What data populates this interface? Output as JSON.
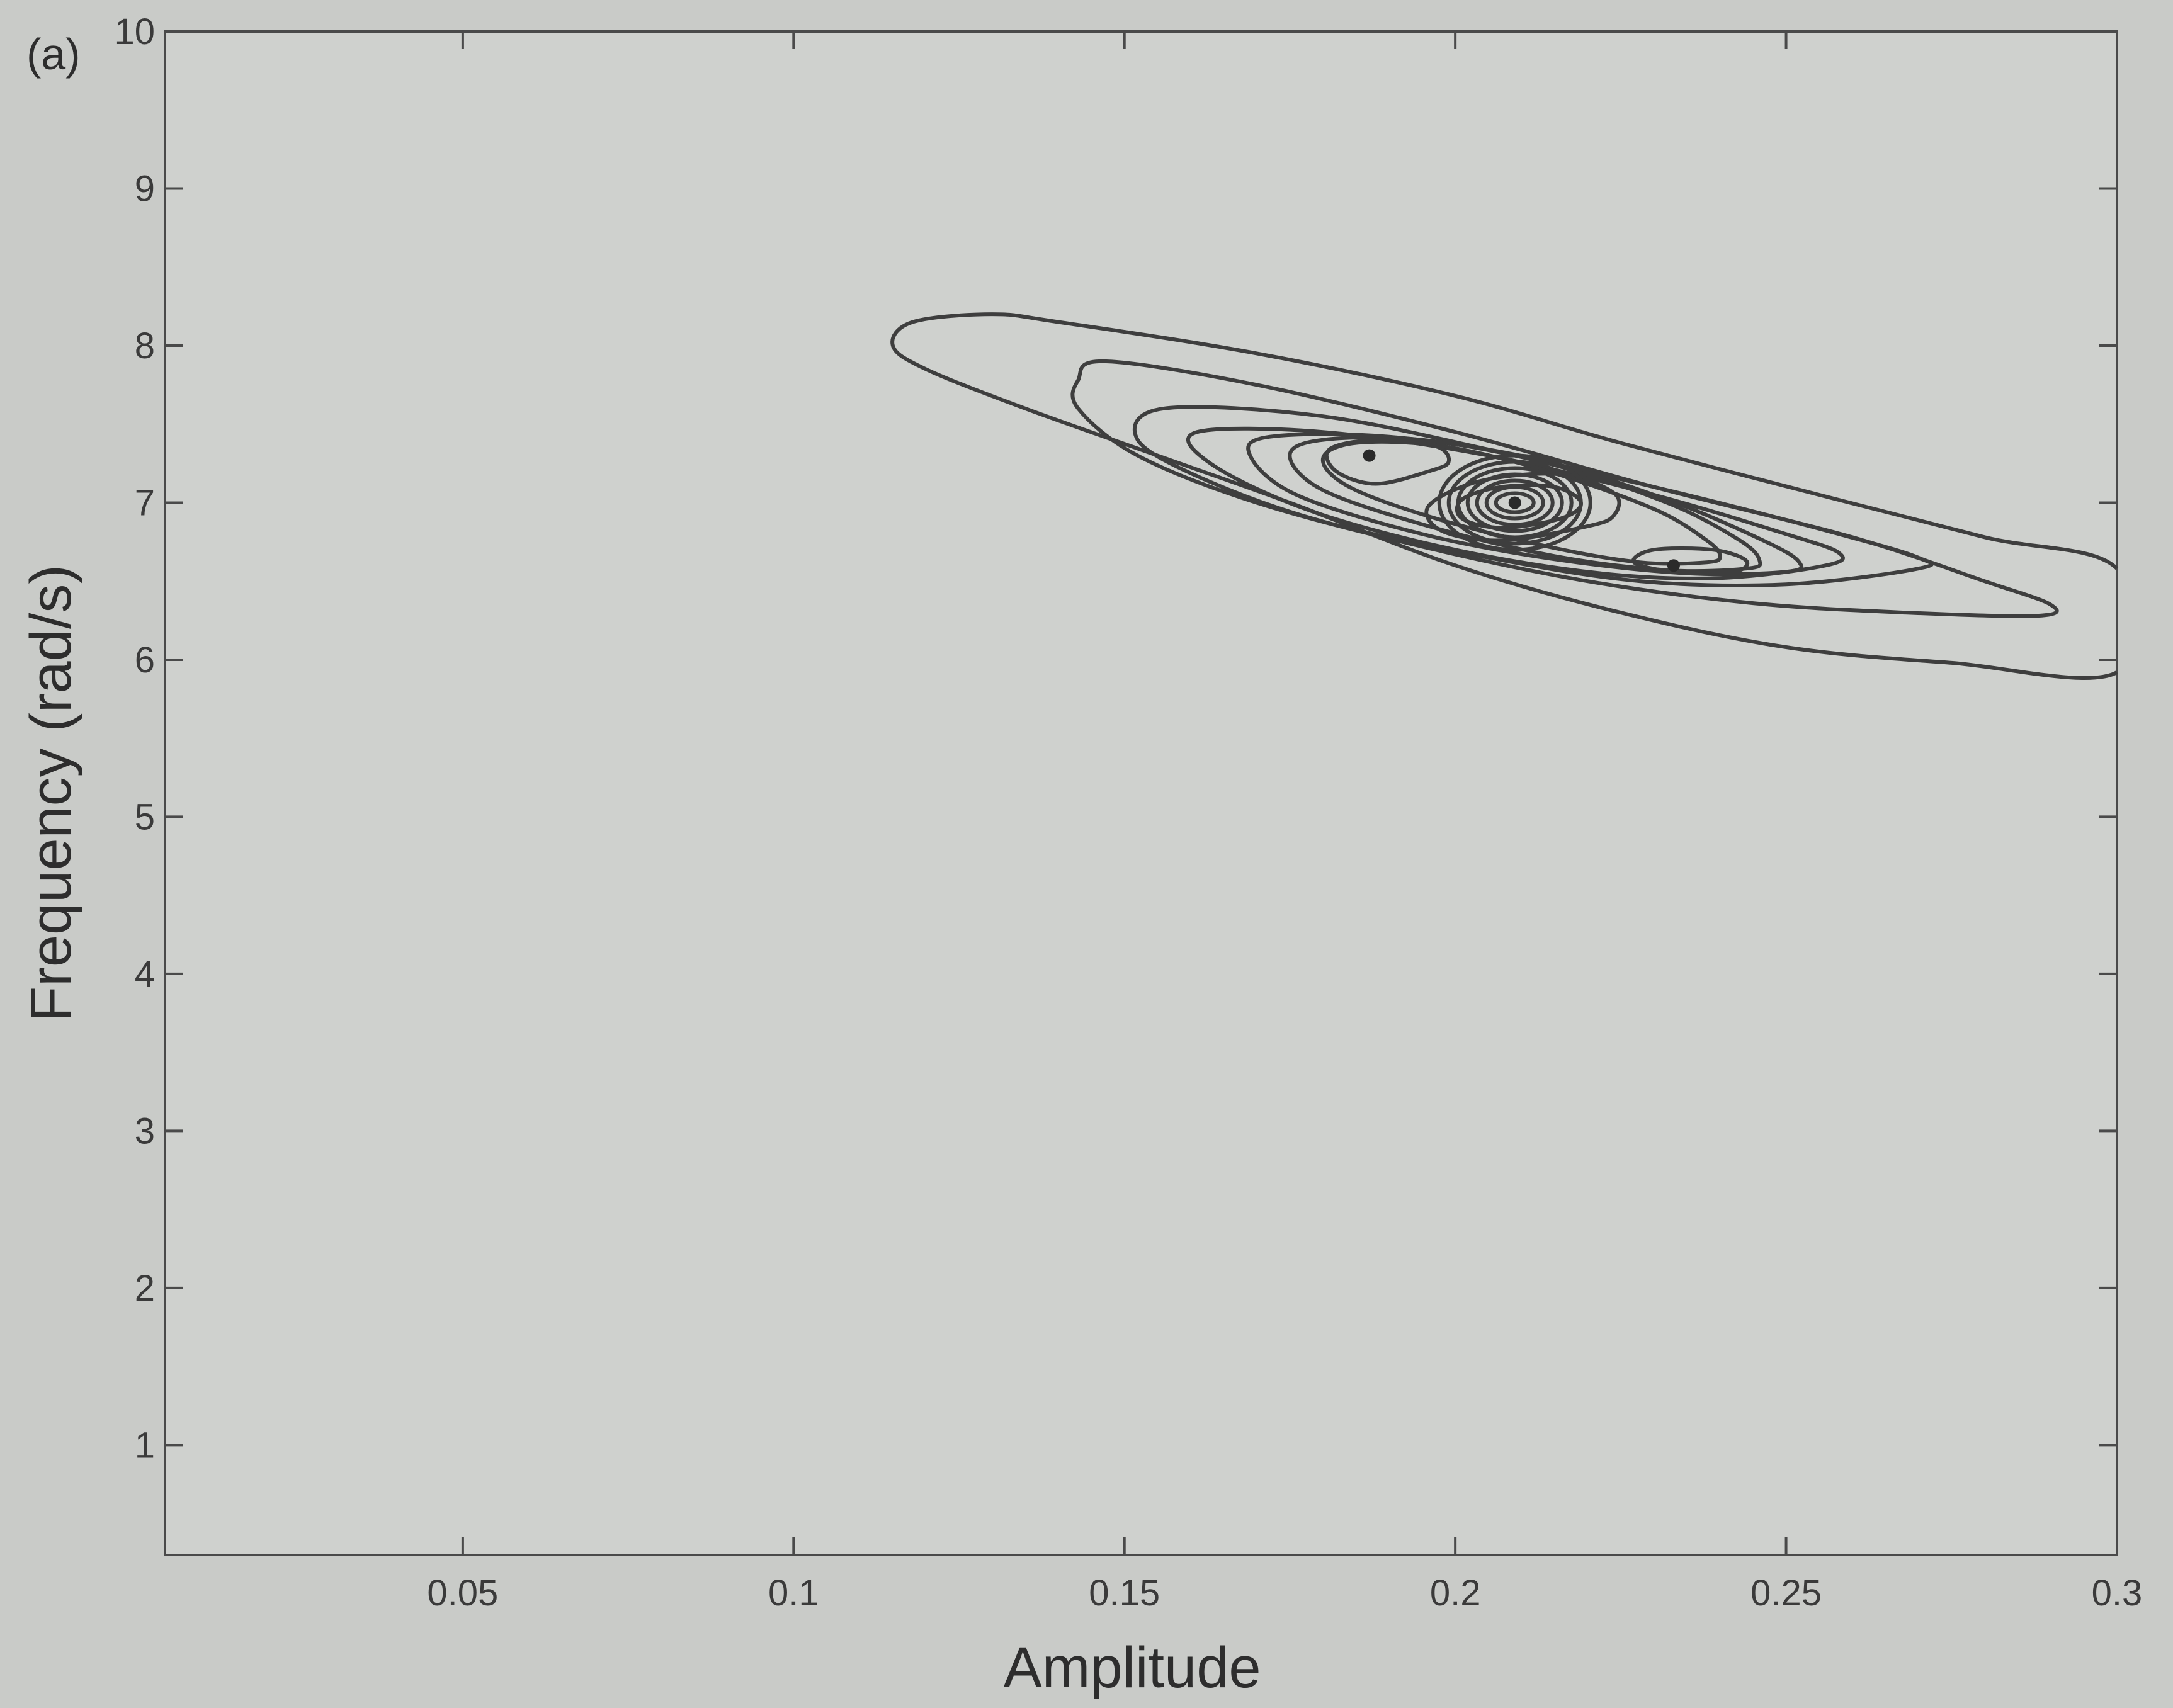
{
  "chart_data": {
    "type": "contour",
    "panel_label": "(a)",
    "title": "",
    "xlabel": "Amplitude",
    "ylabel": "Frequency (rad/s)",
    "xlim": [
      0.005,
      0.3
    ],
    "ylim": [
      0.3,
      10
    ],
    "x_ticks": [
      0.05,
      0.1,
      0.15,
      0.2,
      0.25,
      0.3
    ],
    "x_tick_labels": [
      "0.05",
      "0.1",
      "0.15",
      "0.2",
      "0.25",
      "0.3"
    ],
    "y_ticks": [
      1,
      2,
      3,
      4,
      5,
      6,
      7,
      8,
      9,
      10
    ],
    "y_tick_labels": [
      "1",
      "2",
      "3",
      "4",
      "5",
      "6",
      "7",
      "8",
      "9",
      "10"
    ],
    "grid": false,
    "contour_color": "#3e3e3e",
    "peaks": [
      {
        "amplitude": 0.209,
        "frequency": 7.0
      },
      {
        "amplitude": 0.187,
        "frequency": 7.3
      },
      {
        "amplitude": 0.233,
        "frequency": 6.6
      }
    ],
    "contours": [
      {
        "level": 1,
        "points": [
          [
            0.288,
            6.28
          ],
          [
            0.268,
            6.3
          ],
          [
            0.245,
            6.36
          ],
          [
            0.22,
            6.5
          ],
          [
            0.195,
            6.72
          ],
          [
            0.17,
            7.0
          ],
          [
            0.152,
            7.3
          ],
          [
            0.143,
            7.6
          ],
          [
            0.143,
            7.78
          ],
          [
            0.147,
            7.9
          ],
          [
            0.17,
            7.75
          ],
          [
            0.2,
            7.45
          ],
          [
            0.23,
            7.1
          ],
          [
            0.26,
            6.78
          ],
          [
            0.28,
            6.5
          ],
          [
            0.29,
            6.35
          ]
        ]
      },
      {
        "level": 2,
        "points": [
          [
            0.27,
            6.58
          ],
          [
            0.25,
            6.48
          ],
          [
            0.228,
            6.5
          ],
          [
            0.205,
            6.65
          ],
          [
            0.18,
            6.88
          ],
          [
            0.162,
            7.15
          ],
          [
            0.152,
            7.4
          ],
          [
            0.156,
            7.6
          ],
          [
            0.18,
            7.55
          ],
          [
            0.207,
            7.32
          ],
          [
            0.235,
            7.05
          ],
          [
            0.258,
            6.8
          ],
          [
            0.27,
            6.65
          ]
        ]
      },
      {
        "level": 3,
        "points": [
          [
            0.256,
            6.6
          ],
          [
            0.24,
            6.52
          ],
          [
            0.222,
            6.55
          ],
          [
            0.2,
            6.7
          ],
          [
            0.178,
            6.95
          ],
          [
            0.163,
            7.25
          ],
          [
            0.161,
            7.45
          ],
          [
            0.18,
            7.45
          ],
          [
            0.205,
            7.3
          ],
          [
            0.23,
            7.05
          ],
          [
            0.25,
            6.8
          ],
          [
            0.258,
            6.68
          ]
        ]
      },
      {
        "level": 4,
        "points": [
          [
            0.25,
            6.56
          ],
          [
            0.235,
            6.55
          ],
          [
            0.215,
            6.64
          ],
          [
            0.195,
            6.8
          ],
          [
            0.176,
            7.05
          ],
          [
            0.169,
            7.3
          ],
          [
            0.172,
            7.42
          ],
          [
            0.19,
            7.42
          ],
          [
            0.212,
            7.28
          ],
          [
            0.232,
            7.02
          ],
          [
            0.247,
            6.75
          ],
          [
            0.252,
            6.62
          ]
        ]
      },
      {
        "level": 5,
        "points": [
          [
            0.244,
            6.58
          ],
          [
            0.232,
            6.57
          ],
          [
            0.215,
            6.66
          ],
          [
            0.196,
            6.85
          ],
          [
            0.18,
            7.08
          ],
          [
            0.175,
            7.3
          ],
          [
            0.18,
            7.4
          ],
          [
            0.195,
            7.4
          ],
          [
            0.214,
            7.25
          ],
          [
            0.232,
            7.0
          ],
          [
            0.243,
            6.76
          ],
          [
            0.246,
            6.63
          ]
        ]
      },
      {
        "level": 6,
        "points": [
          [
            0.238,
            6.62
          ],
          [
            0.228,
            6.62
          ],
          [
            0.214,
            6.72
          ],
          [
            0.197,
            6.9
          ],
          [
            0.184,
            7.1
          ],
          [
            0.18,
            7.28
          ],
          [
            0.185,
            7.38
          ],
          [
            0.198,
            7.36
          ],
          [
            0.214,
            7.2
          ],
          [
            0.23,
            6.96
          ],
          [
            0.238,
            6.76
          ],
          [
            0.24,
            6.66
          ]
        ]
      },
      {
        "level": 7,
        "points": [
          [
            0.196,
            7.2
          ],
          [
            0.188,
            7.12
          ],
          [
            0.182,
            7.2
          ],
          [
            0.181,
            7.34
          ],
          [
            0.188,
            7.4
          ],
          [
            0.197,
            7.36
          ],
          [
            0.199,
            7.26
          ]
        ]
      },
      {
        "level": 8,
        "points": [
          [
            0.22,
            6.85
          ],
          [
            0.207,
            6.76
          ],
          [
            0.198,
            6.82
          ],
          [
            0.196,
            6.98
          ],
          [
            0.204,
            7.14
          ],
          [
            0.216,
            7.18
          ],
          [
            0.224,
            7.06
          ],
          [
            0.224,
            6.92
          ]
        ]
      },
      {
        "level": 9,
        "points": [
          [
            0.216,
            6.9
          ],
          [
            0.207,
            6.84
          ],
          [
            0.201,
            6.9
          ],
          [
            0.201,
            7.02
          ],
          [
            0.207,
            7.1
          ],
          [
            0.215,
            7.1
          ],
          [
            0.219,
            7.0
          ]
        ]
      },
      {
        "level": 10,
        "points": [
          [
            0.242,
            6.56
          ],
          [
            0.233,
            6.56
          ],
          [
            0.227,
            6.62
          ],
          [
            0.23,
            6.7
          ],
          [
            0.239,
            6.7
          ],
          [
            0.244,
            6.63
          ]
        ]
      }
    ],
    "outer_contour": {
      "level": 0,
      "points": [
        [
          0.3,
          6.58
        ],
        [
          0.28,
          6.78
        ],
        [
          0.255,
          7.05
        ],
        [
          0.225,
          7.38
        ],
        [
          0.2,
          7.68
        ],
        [
          0.17,
          7.95
        ],
        [
          0.14,
          8.15
        ],
        [
          0.13,
          8.2
        ],
        [
          0.118,
          8.15
        ],
        [
          0.115,
          8.0
        ],
        [
          0.12,
          7.85
        ],
        [
          0.135,
          7.6
        ],
        [
          0.155,
          7.3
        ],
        [
          0.175,
          7.0
        ],
        [
          0.2,
          6.6
        ],
        [
          0.225,
          6.3
        ],
        [
          0.25,
          6.08
        ],
        [
          0.275,
          5.98
        ],
        [
          0.3,
          5.92
        ]
      ]
    }
  }
}
